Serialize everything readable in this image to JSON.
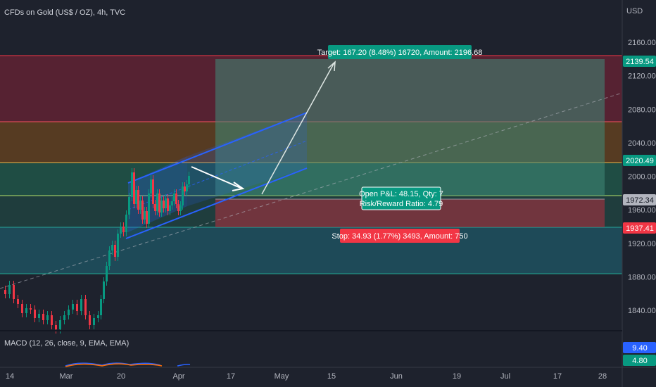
{
  "header": {
    "symbol_title": "CFDs on Gold (US$ / OZ), 4h, TVC",
    "currency": "USD"
  },
  "price_axis": {
    "ticks": [
      "2160.00",
      "2120.00",
      "2080.00",
      "2040.00",
      "2000.00",
      "1960.00",
      "1920.00",
      "1880.00",
      "1840.00"
    ],
    "tick_values": [
      2160,
      2120,
      2080,
      2040,
      2000,
      1960,
      1920,
      1880,
      1840
    ],
    "badges": [
      {
        "label": "2139.54",
        "color": "#089981"
      },
      {
        "label": "2020.49",
        "color": "#089981"
      },
      {
        "label": "1972.34",
        "color": "#b2b5be"
      },
      {
        "label": "1937.41",
        "color": "#f23645"
      }
    ]
  },
  "time_axis": {
    "ticks": [
      "14",
      "Mar",
      "20",
      "Apr",
      "17",
      "May",
      "15",
      "Jun",
      "19",
      "Jul",
      "17",
      "28"
    ]
  },
  "position": {
    "target_label": "Target: 167.20 (8.48%) 16720, Amount: 2196.68",
    "open_pnl_label": "Open P&L: 48.15, Qty: 7",
    "risk_reward_label": "Risk/Reward Ratio: 4.79",
    "stop_label": "Stop: 34.93 (1.77%) 3493, Amount: 750"
  },
  "indicator": {
    "label": "MACD (12, 26, close, 9, EMA, EMA)",
    "values": [
      {
        "label": "9.40",
        "color": "#2962ff"
      },
      {
        "label": "4.80",
        "color": "#089981"
      }
    ]
  },
  "colors": {
    "background": "#1e222d",
    "up": "#089981",
    "down": "#f23645",
    "channel": "#2962ff"
  }
}
